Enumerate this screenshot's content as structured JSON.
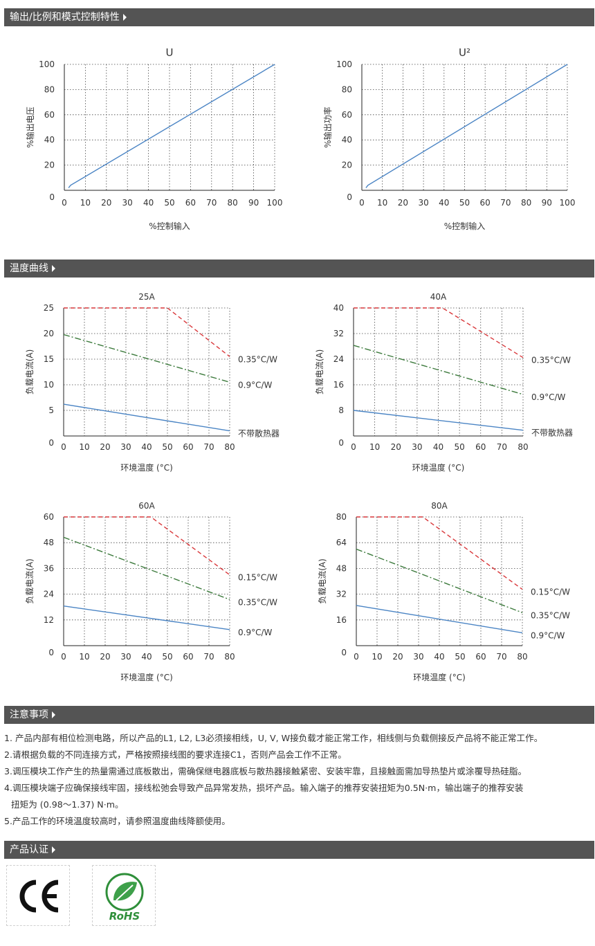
{
  "sections": {
    "output": "输出/比例和模式控制特性",
    "temp": "温度曲线",
    "notes": "注意事项",
    "cert": "产品认证"
  },
  "notes": [
    "1. 产品内部有相位检测电路，所以产品的L1, L2, L3必须接相线，U, V, W接负载才能正常工作，相线侧与负载侧接反产品将不能正常工作。",
    "2.请根据负载的不同连接方式，严格按照接线图的要求连接C1，否则产品会工作不正常。",
    "3.调压模块工作产生的热量需通过底板散出，需确保继电器底板与散热器接触紧密、安装牢靠，且接触面需加导热垫片或涂覆导热硅脂。",
    "4.调压模块端子应确保接线牢固，接线松弛会导致产品异常发热，损坏产品。输入端子的推荐安装扭矩为0.5N·m，输出端子的推荐安装",
    "扭矩为 (0.98～1.37) N·m。",
    "5.产品工作的环境温度较高时，请参照温度曲线降额使用。"
  ],
  "certs": [
    {
      "name": "CE",
      "icon": "ce-mark-icon"
    },
    {
      "name": "RoHS",
      "icon": "rohs-leaf-icon"
    }
  ],
  "chart_data": [
    {
      "type": "line",
      "title": "U",
      "xlabel": "%控制输入",
      "ylabel": "%输出电压",
      "xlim": [
        0,
        100
      ],
      "ylim": [
        0,
        100
      ],
      "xticks": [
        0,
        10,
        20,
        30,
        40,
        50,
        60,
        70,
        80,
        90,
        100
      ],
      "yticks": [
        0,
        20,
        40,
        60,
        80,
        100
      ],
      "grid": true,
      "series": [
        {
          "color": "#4a84c4",
          "x": [
            2,
            3,
            100
          ],
          "y": [
            2,
            4,
            100
          ]
        }
      ]
    },
    {
      "type": "line",
      "title": "U²",
      "xlabel": "%控制输入",
      "ylabel": "%输出功率",
      "xlim": [
        0,
        100
      ],
      "ylim": [
        0,
        100
      ],
      "xticks": [
        0,
        10,
        20,
        30,
        40,
        50,
        60,
        70,
        80,
        90,
        100
      ],
      "yticks": [
        0,
        20,
        40,
        60,
        80,
        100
      ],
      "grid": true,
      "series": [
        {
          "color": "#4a84c4",
          "x": [
            2,
            3,
            100
          ],
          "y": [
            2,
            4,
            100
          ]
        }
      ]
    },
    {
      "type": "line",
      "title": "25A",
      "xlabel": "环境温度 (°C)",
      "ylabel": "负载电流(A)",
      "xlim": [
        0,
        80
      ],
      "ylim": [
        0,
        25
      ],
      "xticks": [
        0,
        10,
        20,
        30,
        40,
        50,
        60,
        70,
        80
      ],
      "yticks": [
        0,
        5,
        10,
        15,
        20,
        25
      ],
      "grid": true,
      "series": [
        {
          "name": "0.35°C/W",
          "color": "#d9373a",
          "dash": "dash",
          "x": [
            0,
            50,
            80
          ],
          "y": [
            25,
            25,
            15.5
          ]
        },
        {
          "name": "0.9°C/W",
          "color": "#3c7a3c",
          "dash": "dashdot",
          "x": [
            0,
            80
          ],
          "y": [
            19.8,
            10.5
          ]
        },
        {
          "name": "不带散热器",
          "color": "#4a84c4",
          "dash": "solid",
          "x": [
            0,
            80
          ],
          "y": [
            6.2,
            1
          ]
        }
      ]
    },
    {
      "type": "line",
      "title": "40A",
      "xlabel": "环境温度 (°C)",
      "ylabel": "负载电流(A)",
      "xlim": [
        0,
        80
      ],
      "ylim": [
        0,
        40
      ],
      "xticks": [
        0,
        10,
        20,
        30,
        40,
        50,
        60,
        70,
        80
      ],
      "yticks": [
        0,
        8,
        16,
        24,
        32,
        40
      ],
      "grid": true,
      "series": [
        {
          "name": "0.35°C/W",
          "color": "#d9373a",
          "dash": "dash",
          "x": [
            0,
            42,
            80
          ],
          "y": [
            40,
            40,
            24.5
          ]
        },
        {
          "name": "0.9°C/W",
          "color": "#3c7a3c",
          "dash": "dashdot",
          "x": [
            0,
            80
          ],
          "y": [
            28.3,
            13
          ]
        },
        {
          "name": "不带散热器",
          "color": "#4a84c4",
          "dash": "solid",
          "x": [
            0,
            80
          ],
          "y": [
            8,
            1.8
          ]
        }
      ]
    },
    {
      "type": "line",
      "title": "60A",
      "xlabel": "环境温度 (°C)",
      "ylabel": "负载电流(A)",
      "xlim": [
        0,
        80
      ],
      "ylim": [
        0,
        60
      ],
      "xticks": [
        0,
        10,
        20,
        30,
        40,
        50,
        60,
        70,
        80
      ],
      "yticks": [
        0,
        12,
        24,
        36,
        48,
        60
      ],
      "grid": true,
      "series": [
        {
          "name": "0.15°C/W",
          "color": "#d9373a",
          "dash": "dash",
          "x": [
            0,
            42,
            80
          ],
          "y": [
            60,
            60,
            33
          ]
        },
        {
          "name": "0.35°C/W",
          "color": "#3c7a3c",
          "dash": "dashdot",
          "x": [
            0,
            80
          ],
          "y": [
            50.5,
            21.5
          ]
        },
        {
          "name": "0.9°C/W",
          "color": "#4a84c4",
          "dash": "solid",
          "x": [
            0,
            80
          ],
          "y": [
            18.5,
            7.5
          ]
        }
      ]
    },
    {
      "type": "line",
      "title": "80A",
      "xlabel": "环境温度 (°C)",
      "ylabel": "负载电流(A)",
      "xlim": [
        0,
        80
      ],
      "ylim": [
        0,
        80
      ],
      "xticks": [
        0,
        10,
        20,
        30,
        40,
        50,
        60,
        70,
        80
      ],
      "yticks": [
        0,
        16,
        32,
        48,
        64,
        80
      ],
      "grid": true,
      "series": [
        {
          "name": "0.15°C/W",
          "color": "#d9373a",
          "dash": "dash",
          "x": [
            0,
            32,
            80
          ],
          "y": [
            80,
            80,
            35
          ]
        },
        {
          "name": "0.35°C/W",
          "color": "#3c7a3c",
          "dash": "dashdot",
          "x": [
            0,
            80
          ],
          "y": [
            60,
            20.5
          ]
        },
        {
          "name": "0.9°C/W",
          "color": "#4a84c4",
          "dash": "solid",
          "x": [
            0,
            80
          ],
          "y": [
            25,
            8
          ]
        }
      ]
    }
  ]
}
